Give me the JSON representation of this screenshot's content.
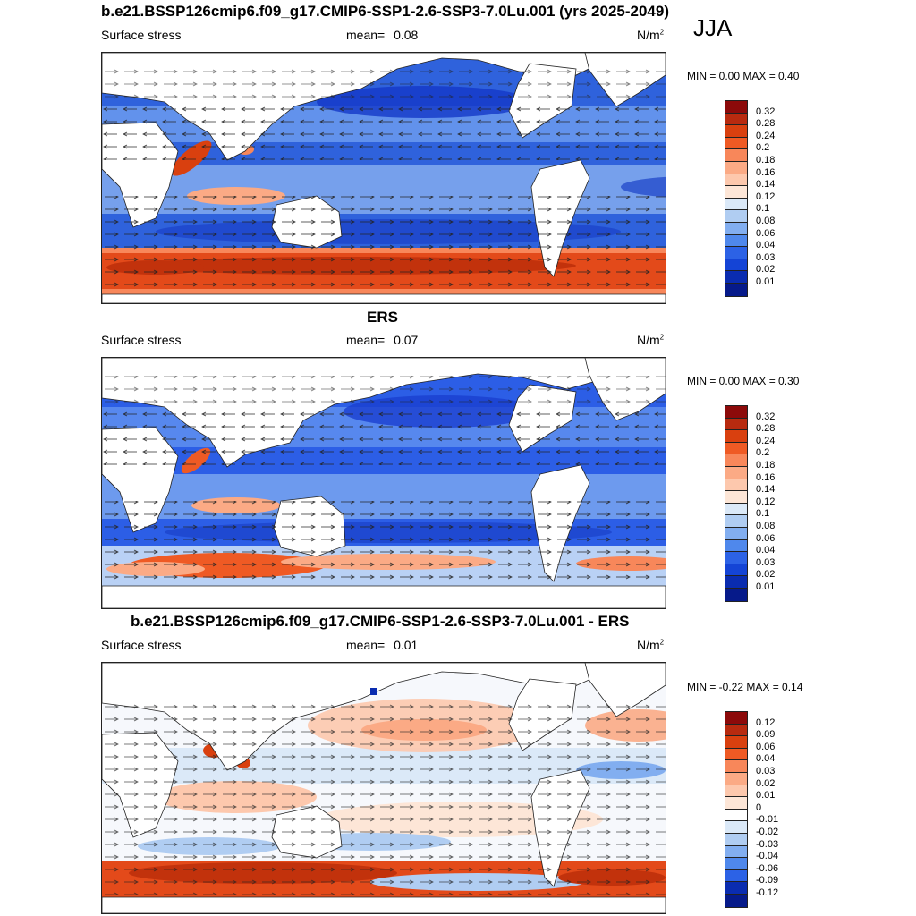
{
  "season": "JJA",
  "panels": [
    {
      "title": "b.e21.BSSP126cmip6.f09_g17.CMIP6-SSP1-2.6-SSP3-7.0Lu.001 (yrs 2025-2049)",
      "field": "Surface stress",
      "mean_label": "mean=",
      "mean": "0.08",
      "units": "N/m",
      "units_sup": "2",
      "minmax": "MIN =   0.00 MAX =   0.40",
      "colorbar_labels": [
        "0.32",
        "0.28",
        "0.24",
        "0.2",
        "0.18",
        "0.16",
        "0.14",
        "0.12",
        "0.1",
        "0.08",
        "0.06",
        "0.04",
        "0.03",
        "0.02",
        "0.01"
      ],
      "colorbar_colors": [
        "#8c0a0a",
        "#b82a0f",
        "#d9400f",
        "#ef5a24",
        "#f8875a",
        "#fbaa85",
        "#fdc8ad",
        "#fde6d7",
        "#dbe9f8",
        "#b0cdf2",
        "#82aef0",
        "#4f88ec",
        "#2c62e6",
        "#1444d6",
        "#0a2cb0",
        "#061a8a"
      ]
    },
    {
      "title": "ERS",
      "field": "Surface stress",
      "mean_label": "mean=",
      "mean": "0.07",
      "units": "N/m",
      "units_sup": "2",
      "minmax": "MIN =   0.00 MAX =   0.30",
      "colorbar_labels": [
        "0.32",
        "0.28",
        "0.24",
        "0.2",
        "0.18",
        "0.16",
        "0.14",
        "0.12",
        "0.1",
        "0.08",
        "0.06",
        "0.04",
        "0.03",
        "0.02",
        "0.01"
      ],
      "colorbar_colors": [
        "#8c0a0a",
        "#b82a0f",
        "#d9400f",
        "#ef5a24",
        "#f8875a",
        "#fbaa85",
        "#fdc8ad",
        "#fde6d7",
        "#dbe9f8",
        "#b0cdf2",
        "#82aef0",
        "#4f88ec",
        "#2c62e6",
        "#1444d6",
        "#0a2cb0",
        "#061a8a"
      ]
    },
    {
      "title": "b.e21.BSSP126cmip6.f09_g17.CMIP6-SSP1-2.6-SSP3-7.0Lu.001 - ERS",
      "field": "Surface stress",
      "mean_label": "mean=",
      "mean": "0.01",
      "units": "N/m",
      "units_sup": "2",
      "minmax": "MIN =  -0.22 MAX =   0.14",
      "colorbar_labels": [
        "0.12",
        "0.09",
        "0.06",
        "0.04",
        "0.03",
        "0.02",
        "0.01",
        "0",
        "-0.01",
        "-0.02",
        "-0.03",
        "-0.04",
        "-0.06",
        "-0.09",
        "-0.12"
      ],
      "colorbar_colors": [
        "#8c0a0a",
        "#b82a0f",
        "#d9400f",
        "#ef5a24",
        "#f8875a",
        "#fbaa85",
        "#fdc8ad",
        "#fde6d7",
        "#ffffff",
        "#dbe9f8",
        "#b0cdf2",
        "#82aef0",
        "#4f88ec",
        "#2c62e6",
        "#0a2cb0",
        "#061a8a"
      ]
    }
  ]
}
